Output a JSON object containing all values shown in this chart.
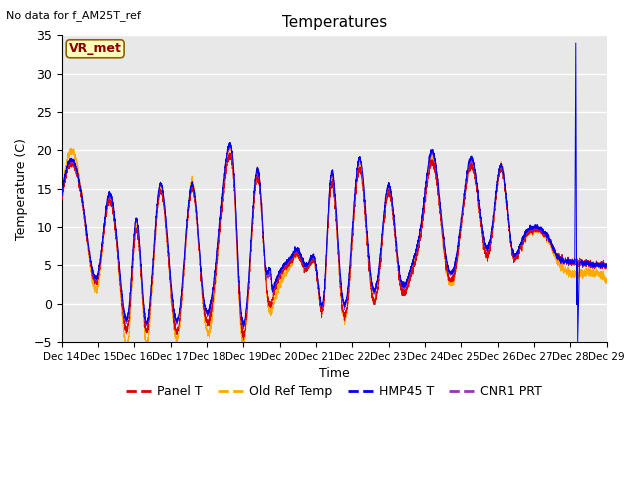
{
  "title": "Temperatures",
  "xlabel": "Time",
  "ylabel": "Temperature (C)",
  "top_left_text": "No data for f_AM25T_ref",
  "annotation_box": "VR_met",
  "ylim": [
    -5,
    35
  ],
  "yticks": [
    -5,
    0,
    5,
    10,
    15,
    20,
    25,
    30,
    35
  ],
  "xtick_labels": [
    "Dec 14",
    "Dec 15",
    "Dec 16",
    "Dec 17",
    "Dec 18",
    "Dec 19",
    "Dec 20",
    "Dec 21",
    "Dec 22",
    "Dec 23",
    "Dec 24",
    "Dec 25",
    "Dec 26",
    "Dec 27",
    "Dec 28",
    "Dec 29"
  ],
  "series_colors": {
    "panel_t": "#dd0000",
    "old_ref": "#ffaa00",
    "hmp45": "#0000ee",
    "cnr1": "#9933bb"
  },
  "series_labels": [
    "Panel T",
    "Old Ref Temp",
    "HMP45 T",
    "CNR1 PRT"
  ],
  "background_color": "#e8e8e8",
  "grid_color": "white",
  "figsize": [
    6.4,
    4.8
  ],
  "dpi": 100
}
